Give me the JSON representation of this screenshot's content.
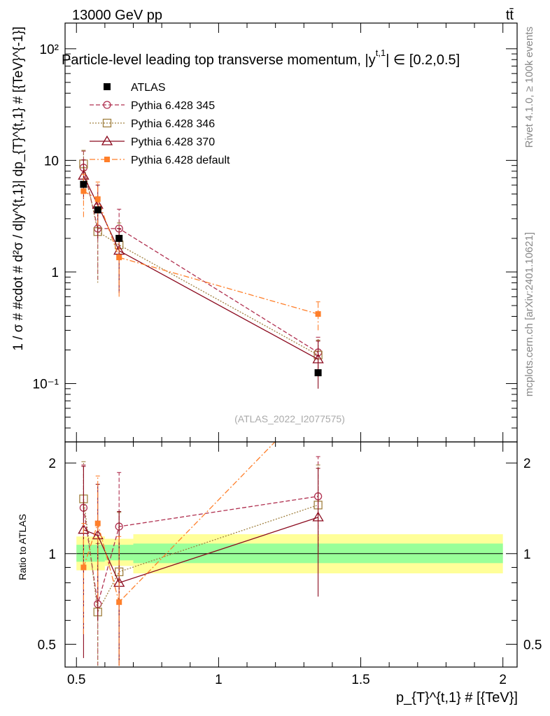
{
  "header": {
    "energy_label": "13000 GeV pp",
    "process_label": "tt̄",
    "title": "Particle-level leading top transverse momentum, |y",
    "title_sup": "t,1",
    "title_range": "| ∈ [0.2,0.5]",
    "ylabel": "1 / σ # #cdot # d²σ / d|y^{t,1}| dp_{T}^{t,1} # [{TeV}^{-1}]",
    "ratio_ylabel": "Ratio to ATLAS",
    "xlabel": "p_{T}^{t,1} # [{TeV}]",
    "watermark": "(ATLAS_2022_I2077575)",
    "side_rivet": "Rivet 4.1.0, ≥ 100k events",
    "side_mcplots": "mcplots.cern.ch [arXiv:2401.10621]"
  },
  "chart_data": {
    "type": "scatter",
    "x_range": [
      0.46,
      2.05
    ],
    "main_ylim": [
      0.03,
      170
    ],
    "main_yscale": "log",
    "ratio_ylim": [
      0.42,
      2.35
    ],
    "ratio_yscale": "log",
    "x_ticks": [
      0.5,
      1,
      1.5,
      2
    ],
    "x_tick_labels": [
      "0.5",
      "1",
      "1.5",
      "2"
    ],
    "main_y_ticks": [
      0.1,
      1,
      10,
      100
    ],
    "main_y_tick_labels": [
      "10⁻¹",
      "1",
      "10",
      "10²"
    ],
    "ratio_y_ticks": [
      0.5,
      1,
      2
    ],
    "ratio_y_tick_labels": [
      "0.5",
      "1",
      "2"
    ],
    "reference": {
      "name": "ATLAS",
      "color": "#000000",
      "x": [
        0.525,
        0.575,
        0.65,
        1.35
      ],
      "y": [
        6.1,
        3.6,
        2.0,
        0.125
      ]
    },
    "bands": {
      "edges": [
        0.5,
        0.55,
        0.6,
        0.7,
        2.0
      ],
      "inner": [
        [
          0.94,
          1.07
        ],
        [
          0.94,
          1.07
        ],
        [
          0.95,
          1.07
        ],
        [
          0.93,
          1.08
        ],
        [
          0.93,
          1.08
        ]
      ],
      "outer": [
        [
          0.88,
          1.14
        ],
        [
          0.88,
          1.14
        ],
        [
          0.91,
          1.12
        ],
        [
          0.86,
          1.16
        ],
        [
          0.86,
          1.16
        ]
      ],
      "inner_color": "#99ff99",
      "outer_color": "#ffff99"
    },
    "series": [
      {
        "name": "Pythia 6.428 345",
        "color": "#b03050",
        "marker": "open-circle",
        "dash": "6,3",
        "x": [
          0.525,
          0.575,
          0.65,
          1.35
        ],
        "y": [
          8.6,
          2.45,
          2.45,
          0.19
        ],
        "yerr": [
          3.5,
          1.6,
          1.2,
          0.07
        ],
        "ratio": [
          1.42,
          0.68,
          1.23,
          1.55
        ],
        "ratio_err": [
          0.55,
          0.47,
          0.63,
          0.55
        ]
      },
      {
        "name": "Pythia 6.428 346",
        "color": "#a08040",
        "marker": "open-square",
        "dash": "2,2",
        "x": [
          0.525,
          0.575,
          0.65,
          1.35
        ],
        "y": [
          9.3,
          2.3,
          1.75,
          0.18
        ],
        "yerr": [
          3.0,
          1.5,
          1.0,
          0.065
        ],
        "ratio": [
          1.52,
          0.64,
          0.87,
          1.45
        ],
        "ratio_err": [
          0.5,
          0.44,
          0.5,
          0.52
        ]
      },
      {
        "name": "Pythia 6.428 370",
        "color": "#8b0a1e",
        "marker": "open-triangle",
        "dash": "",
        "x": [
          0.525,
          0.575,
          0.65,
          1.35
        ],
        "y": [
          7.3,
          4.0,
          1.55,
          0.165
        ],
        "yerr": [
          2.8,
          2.0,
          0.9,
          0.075
        ],
        "ratio": [
          1.2,
          1.15,
          0.8,
          1.32
        ],
        "ratio_err": [
          0.75,
          0.55,
          0.58,
          0.6
        ]
      },
      {
        "name": "Pythia 6.428 default",
        "color": "#ff7f2a",
        "marker": "filled-square",
        "dash": "8,3,2,3",
        "x": [
          0.525,
          0.575,
          0.65,
          1.35
        ],
        "y": [
          5.3,
          4.5,
          1.35,
          0.42
        ],
        "yerr": [
          2.2,
          1.9,
          0.75,
          0.12
        ],
        "ratio": [
          0.9,
          1.26,
          0.69,
          3.3
        ],
        "ratio_err": [
          0.36,
          0.55,
          0.45,
          0.9
        ]
      }
    ]
  }
}
